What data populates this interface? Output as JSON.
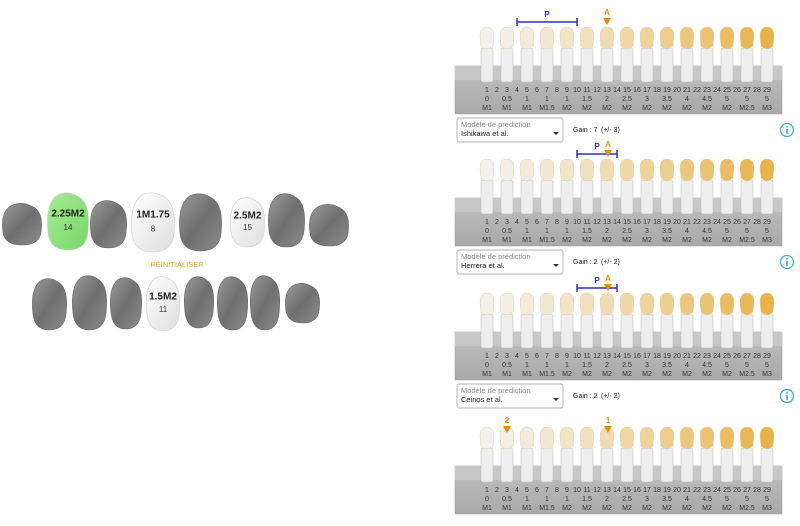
{
  "tooth_labels": [
    {
      "shade": "2.25M2",
      "number": "14"
    },
    {
      "shade": "1M1.75",
      "number": "8"
    },
    {
      "shade": "2.5M2",
      "number": "15"
    },
    {
      "shade": "1.5M2",
      "number": "11"
    }
  ],
  "reset_button": "RÉINITIALISER",
  "shade_guide": {
    "numbers": [
      "1",
      "2",
      "3",
      "4",
      "5",
      "6",
      "7",
      "8",
      "9",
      "10",
      "11",
      "12",
      "13",
      "14",
      "15",
      "16",
      "17",
      "18",
      "19",
      "20",
      "21",
      "22",
      "23",
      "24",
      "25",
      "26",
      "27",
      "28",
      "29"
    ],
    "values": [
      "0",
      "0.5",
      "1",
      "1",
      "1",
      "1.5",
      "2",
      "2.5",
      "3",
      "3.5",
      "4",
      "4.5",
      "5",
      "5",
      "5"
    ],
    "models": [
      "M1",
      "M1",
      "M1",
      "M1.5",
      "M2",
      "M2",
      "M2",
      "M2",
      "M2",
      "M2",
      "M2",
      "M2",
      "M2",
      "M2.5",
      "M3"
    ]
  },
  "prediction_label": "Modèle de prédiction",
  "predictions": [
    {
      "model": "Ishikawa et al.",
      "gain": "Gain : 7",
      "range": "(+/- 3)",
      "p_label": "P",
      "a_label": "A"
    },
    {
      "model": "Herrera et al.",
      "gain": "Gain : 2",
      "range": "(+/- 2)",
      "p_label": "P",
      "a_label": "A"
    },
    {
      "model": "Ceinos et al.",
      "gain": "Gain : 2",
      "range": "(+/- 2)",
      "p_label": "P",
      "a_label": "A"
    }
  ],
  "final_markers": [
    "2",
    "1"
  ]
}
